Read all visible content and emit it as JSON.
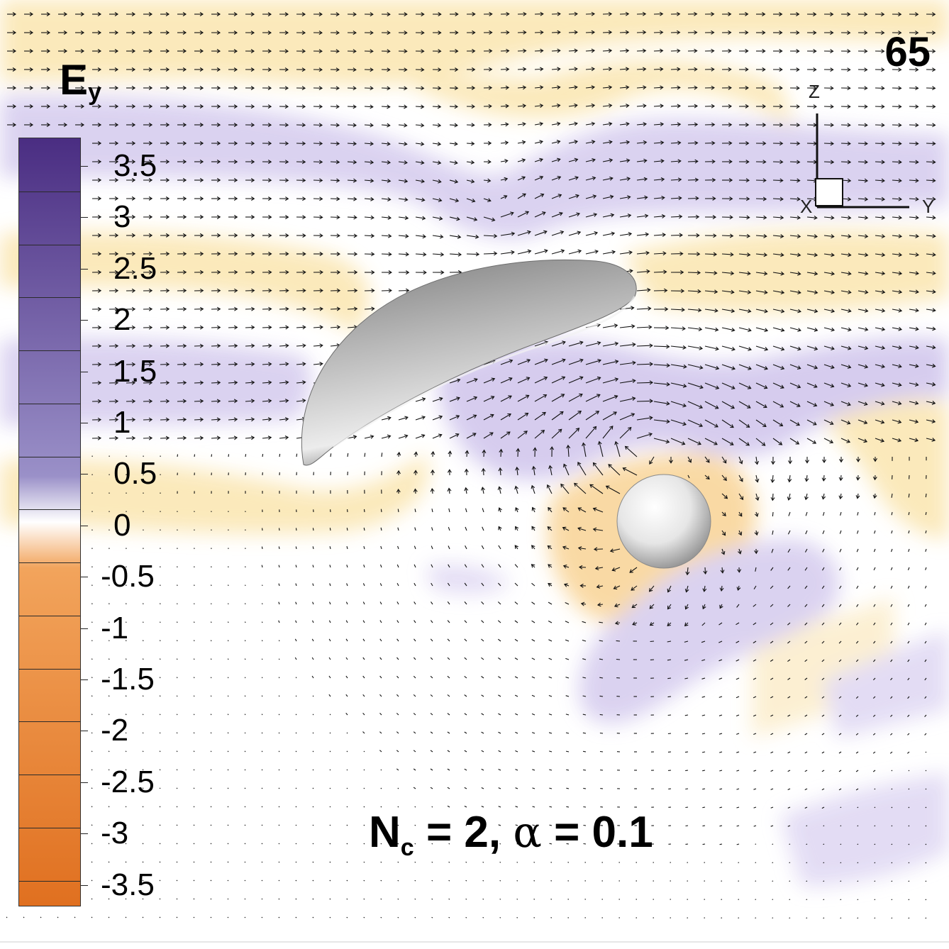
{
  "frame_number": "65",
  "colorbar": {
    "title": "E",
    "title_subscript": "y",
    "ticks": [
      "3.5",
      "3",
      "2.5",
      "2",
      "1.5",
      "1",
      "0.5",
      "0",
      "-0.5",
      "-1",
      "-1.5",
      "-2",
      "-2.5",
      "-3",
      "-3.5"
    ],
    "colors": {
      "high": "#4a2d82",
      "mid_high": "#9a90c8",
      "zero": "#ffffff",
      "mid_low": "#f2a45c",
      "low": "#e07020"
    }
  },
  "axes_triad": {
    "z": "Z",
    "x": "X",
    "y": "Y"
  },
  "parameters_label": {
    "n_symbol": "N",
    "n_subscript": "c",
    "n_value": "= 2,",
    "alpha_symbol": "α",
    "alpha_value": "= 0.1"
  },
  "field_colors": {
    "positive_band": "#d9d0f0",
    "negative_band": "#fbe8b8",
    "arrows": "#111111"
  },
  "objects": [
    {
      "name": "curved-lens",
      "shape": "half-ellipsoid",
      "color": "#9a9a9a"
    },
    {
      "name": "sphere",
      "shape": "sphere",
      "color": "#cfcfcf"
    }
  ]
}
